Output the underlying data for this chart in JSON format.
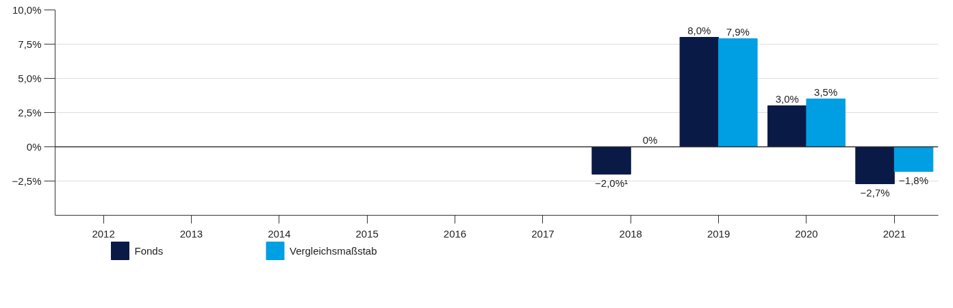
{
  "chart_data": {
    "type": "bar",
    "categories": [
      "2012",
      "2013",
      "2014",
      "2015",
      "2016",
      "2017",
      "2018",
      "2019",
      "2020",
      "2021"
    ],
    "series": [
      {
        "name": "Fonds",
        "color": "#0a1a46",
        "values": [
          null,
          null,
          null,
          null,
          null,
          null,
          -2.0,
          8.0,
          3.0,
          -2.7
        ],
        "value_labels": [
          null,
          null,
          null,
          null,
          null,
          null,
          "−2,0%¹",
          "8,0%",
          "3,0%",
          "−2,7%"
        ]
      },
      {
        "name": "Vergleichsmaßstab",
        "color": "#009fe3",
        "values": [
          null,
          null,
          null,
          null,
          null,
          null,
          0,
          7.9,
          3.5,
          -1.8
        ],
        "value_labels": [
          null,
          null,
          null,
          null,
          null,
          null,
          "0%",
          "7,9%",
          "3,5%",
          "−1,8%"
        ]
      }
    ],
    "ylim": [
      -5,
      10
    ],
    "yticks": [
      {
        "value": -2.5,
        "label": "−2,5%"
      },
      {
        "value": 0,
        "label": "0%"
      },
      {
        "value": 2.5,
        "label": "2,5%"
      },
      {
        "value": 5,
        "label": "5,0%"
      },
      {
        "value": 7.5,
        "label": "7,5%"
      },
      {
        "value": 10,
        "label": "10,0%"
      }
    ],
    "ref_lines": [
      {
        "axis": "y",
        "value": 0,
        "color": "#333333"
      }
    ],
    "grid": "y",
    "legend": "bottom"
  }
}
